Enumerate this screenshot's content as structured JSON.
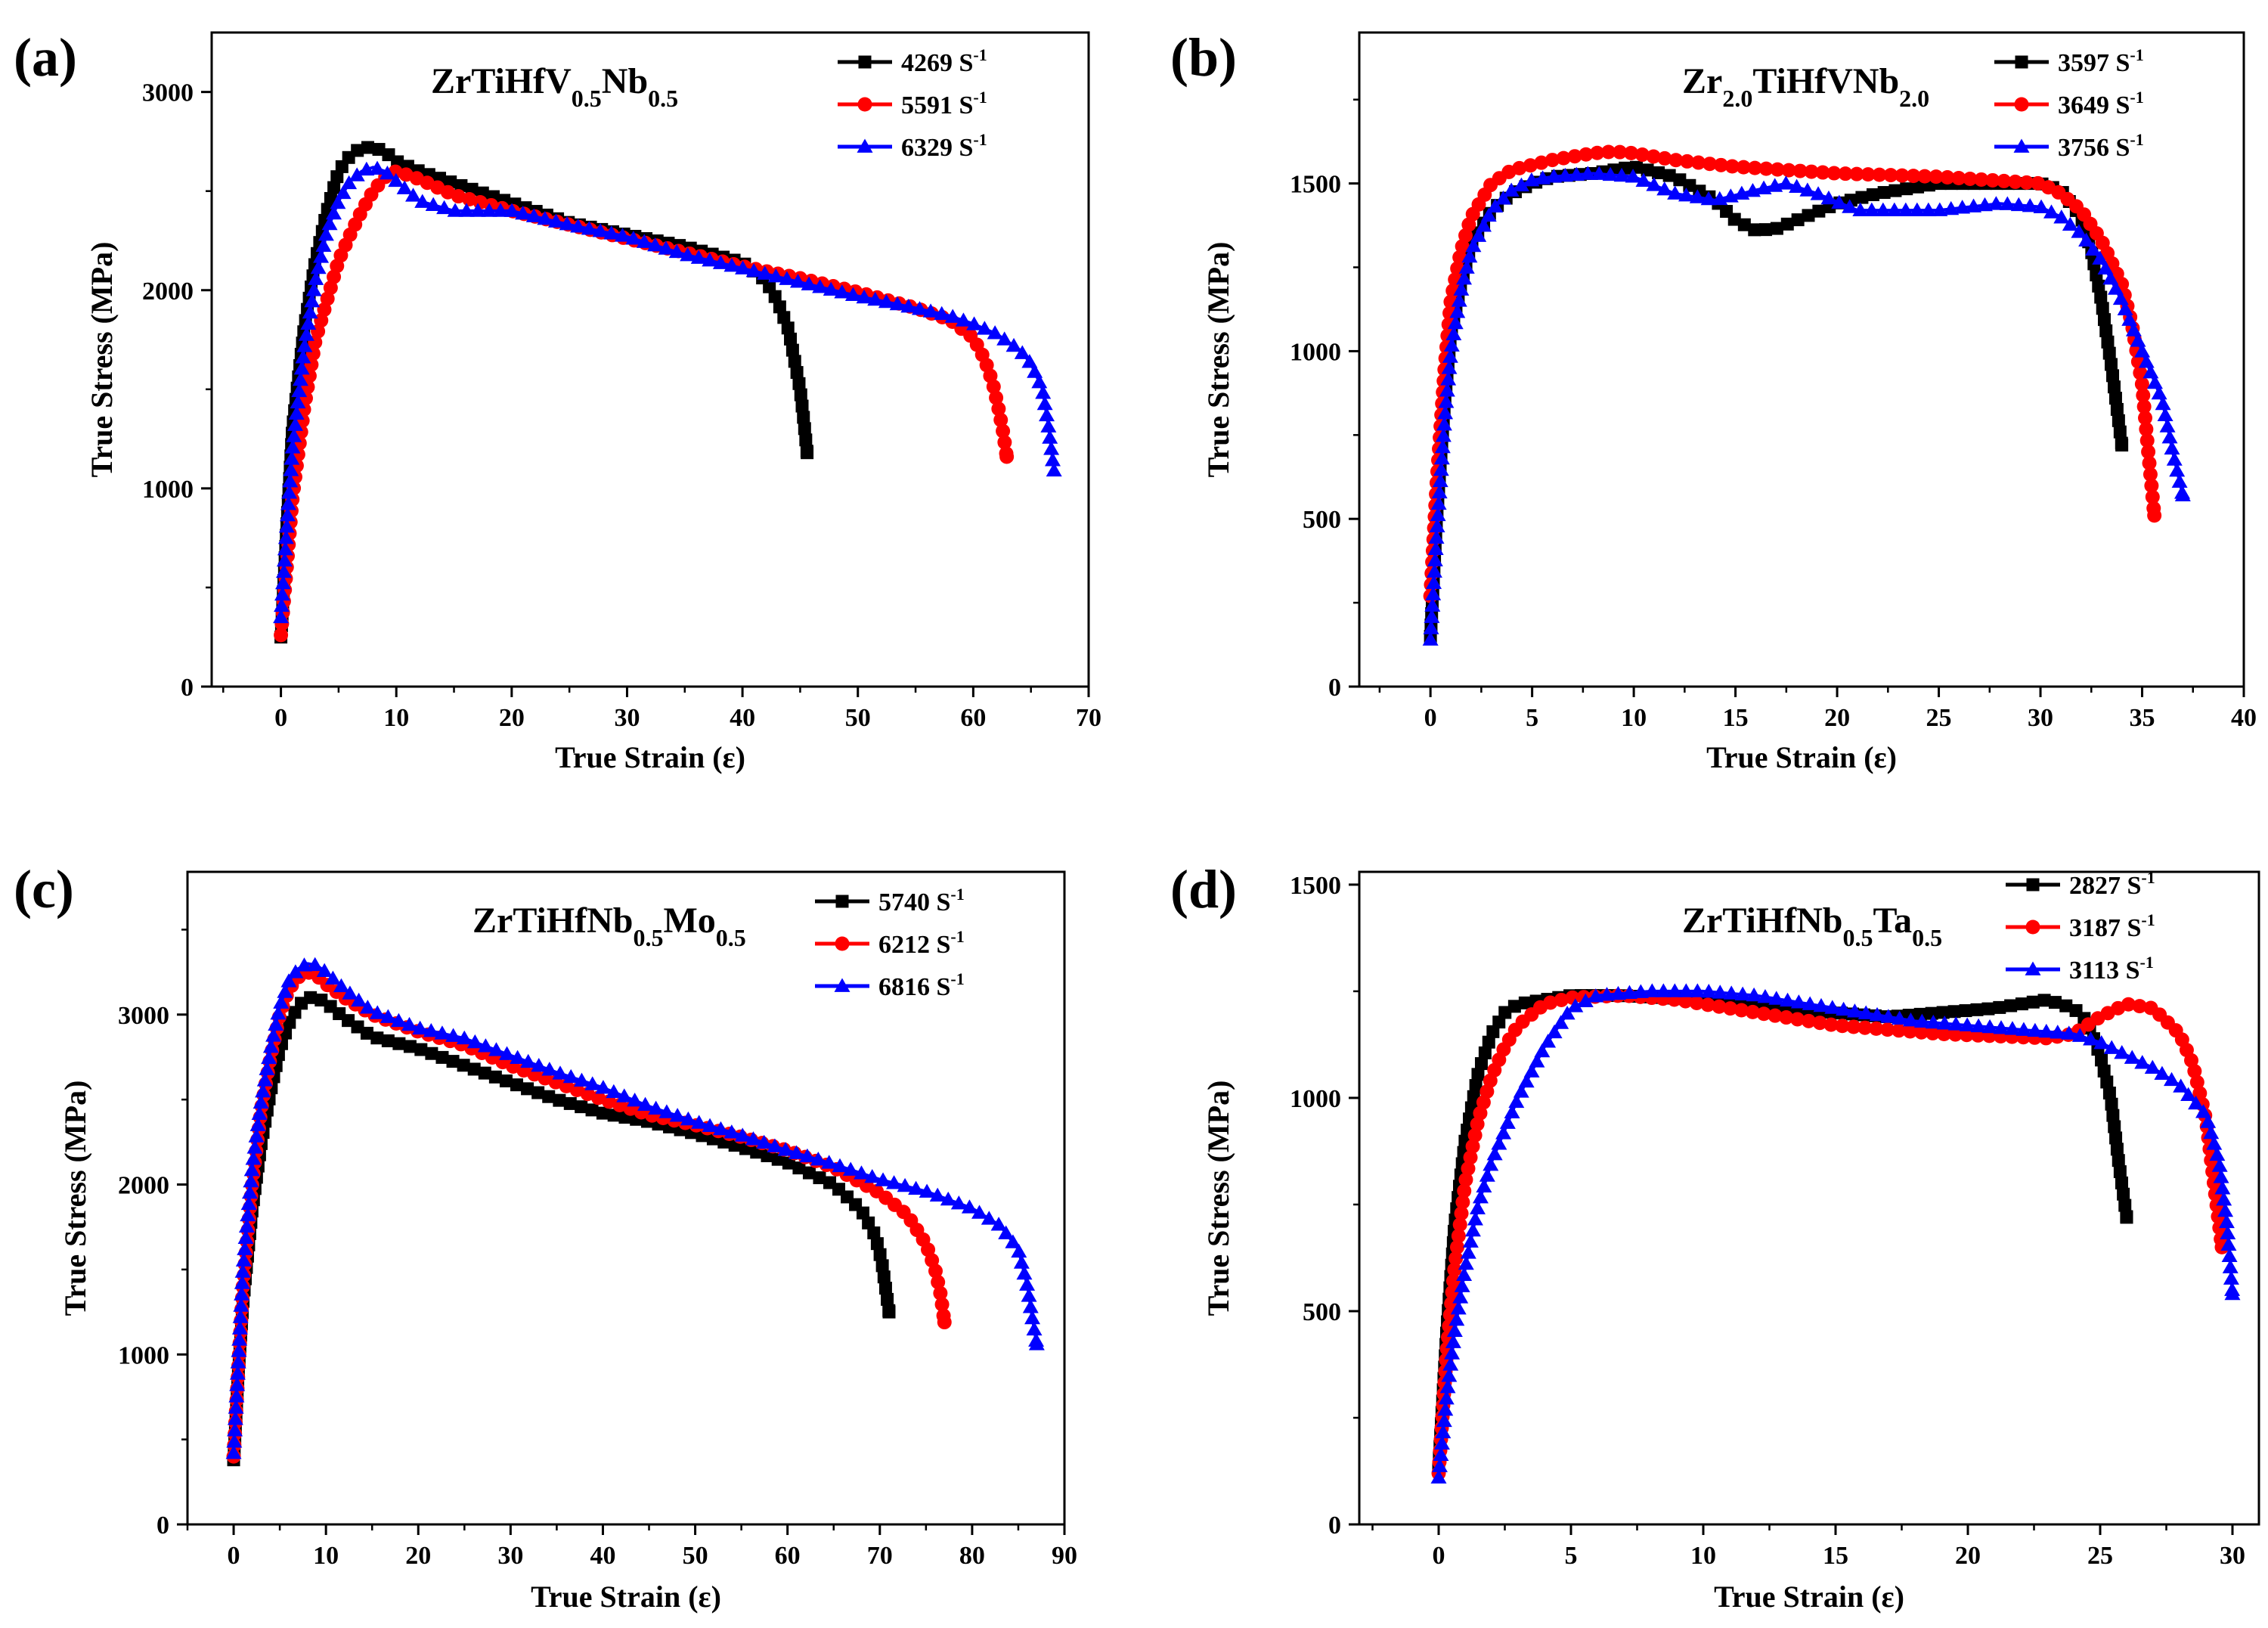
{
  "figure": {
    "colors": {
      "black": "#000000",
      "red": "#ff0000",
      "blue": "#0000ff"
    },
    "markers": {
      "black": "square",
      "red": "circle",
      "blue": "triangle"
    }
  },
  "chart_data": [
    {
      "panel_label": "(a)",
      "type": "line",
      "title": "ZrTiHfV0.5Nb0.5",
      "title_parts": [
        {
          "text": "ZrTiHfV",
          "sub": false
        },
        {
          "text": "0.5",
          "sub": true
        },
        {
          "text": "Nb",
          "sub": false
        },
        {
          "text": "0.5",
          "sub": true
        }
      ],
      "xlabel": "True Strain (ε)",
      "ylabel": "True Stress (MPa)",
      "xlim": [
        -6,
        70
      ],
      "ylim": [
        0,
        3300
      ],
      "xticks": [
        0,
        10,
        20,
        30,
        40,
        50,
        60,
        70
      ],
      "yticks": [
        0,
        1000,
        2000,
        3000
      ],
      "legend_position": "top-right",
      "series": [
        {
          "name": "4269 S-1",
          "label_base": "4269 S",
          "label_sup": "-1",
          "color": "#000000",
          "marker": "square",
          "x": [
            0,
            0.5,
            1,
            2,
            3,
            4,
            5,
            6,
            7,
            8,
            9,
            10,
            12,
            15,
            20,
            25,
            30,
            35,
            40,
            42,
            43,
            44,
            44.5,
            45,
            45.3,
            45.6
          ],
          "y": [
            250,
            800,
            1300,
            1800,
            2150,
            2400,
            2600,
            2680,
            2720,
            2720,
            2700,
            2650,
            2600,
            2540,
            2440,
            2340,
            2280,
            2220,
            2140,
            2050,
            1950,
            1800,
            1650,
            1500,
            1350,
            1180
          ]
        },
        {
          "name": "5591 S-1",
          "label_base": "5591 S",
          "label_sup": "-1",
          "color": "#ff0000",
          "marker": "circle",
          "x": [
            0,
            0.5,
            1,
            2,
            3,
            4,
            5,
            6,
            7,
            8,
            9,
            10,
            12,
            15,
            20,
            25,
            30,
            35,
            40,
            45,
            50,
            55,
            58,
            60,
            61,
            61.7,
            62.2,
            62.6,
            62.9
          ],
          "y": [
            260,
            600,
            950,
            1400,
            1750,
            1950,
            2150,
            2280,
            2400,
            2500,
            2570,
            2600,
            2560,
            2480,
            2400,
            2330,
            2260,
            2190,
            2120,
            2060,
            1990,
            1910,
            1850,
            1760,
            1650,
            1530,
            1400,
            1280,
            1160
          ]
        },
        {
          "name": "6329 S-1",
          "label_base": "6329 S",
          "label_sup": "-1",
          "color": "#0000ff",
          "marker": "triangle",
          "x": [
            0,
            0.5,
            1,
            2,
            3,
            4,
            5,
            6,
            7,
            8,
            9,
            10,
            12,
            15,
            20,
            25,
            30,
            35,
            40,
            45,
            50,
            55,
            58,
            60,
            62,
            64,
            65,
            66,
            66.5,
            67
          ],
          "y": [
            350,
            800,
            1200,
            1700,
            2050,
            2300,
            2450,
            2550,
            2600,
            2620,
            2600,
            2550,
            2450,
            2400,
            2400,
            2330,
            2270,
            2180,
            2110,
            2040,
            1970,
            1910,
            1870,
            1830,
            1780,
            1700,
            1630,
            1500,
            1320,
            1090
          ]
        }
      ]
    },
    {
      "panel_label": "(b)",
      "type": "line",
      "title": "Zr2.0TiHfVNb2.0",
      "title_parts": [
        {
          "text": "Zr",
          "sub": false
        },
        {
          "text": "2.0",
          "sub": true
        },
        {
          "text": "TiHfVNb",
          "sub": false
        },
        {
          "text": "2.0",
          "sub": true
        }
      ],
      "xlabel": "True Strain (ε)",
      "ylabel": "True Stress (MPa)",
      "xlim": [
        -3.5,
        40
      ],
      "ylim": [
        0,
        1950
      ],
      "xticks": [
        0,
        5,
        10,
        15,
        20,
        25,
        30,
        35,
        40
      ],
      "yticks": [
        0,
        500,
        1000,
        1500
      ],
      "legend_position": "top-right",
      "series": [
        {
          "name": "3597 S-1",
          "label_base": "3597 S",
          "label_sup": "-1",
          "color": "#000000",
          "marker": "square",
          "x": [
            0,
            0.3,
            0.7,
            1,
            1.5,
            2,
            3,
            4,
            5,
            6,
            8,
            10,
            12,
            14,
            15,
            16,
            17,
            18,
            20,
            22,
            25,
            28,
            30,
            31,
            32,
            32.5,
            33,
            33.5,
            34
          ],
          "y": [
            150,
            500,
            850,
            1050,
            1200,
            1320,
            1420,
            1470,
            1500,
            1520,
            1530,
            1550,
            1520,
            1450,
            1390,
            1360,
            1365,
            1390,
            1440,
            1470,
            1500,
            1500,
            1500,
            1480,
            1400,
            1300,
            1150,
            950,
            720
          ]
        },
        {
          "name": "3649 S-1",
          "label_base": "3649 S",
          "label_sup": "-1",
          "color": "#ff0000",
          "marker": "circle",
          "x": [
            0,
            0.3,
            0.7,
            1,
            1.5,
            2,
            3,
            4,
            5,
            6,
            7,
            8,
            9,
            10,
            12,
            15,
            20,
            25,
            30,
            31,
            32,
            33,
            34,
            34.5,
            35,
            35.3,
            35.6
          ],
          "y": [
            270,
            600,
            950,
            1150,
            1300,
            1400,
            1500,
            1540,
            1555,
            1570,
            1580,
            1590,
            1595,
            1590,
            1570,
            1550,
            1530,
            1520,
            1500,
            1470,
            1420,
            1330,
            1200,
            1080,
            900,
            700,
            510
          ]
        },
        {
          "name": "3756 S-1",
          "label_base": "3756 S",
          "label_sup": "-1",
          "color": "#0000ff",
          "marker": "triangle",
          "x": [
            0,
            0.3,
            0.7,
            1,
            1.5,
            2,
            3,
            4,
            5,
            6,
            8,
            10,
            12,
            14,
            16,
            17.5,
            19,
            21,
            25,
            28,
            30,
            31,
            32,
            33,
            34,
            35,
            36,
            36.5,
            37
          ],
          "y": [
            140,
            450,
            800,
            1000,
            1180,
            1300,
            1420,
            1480,
            1510,
            1520,
            1530,
            1520,
            1470,
            1450,
            1480,
            1500,
            1470,
            1420,
            1420,
            1440,
            1430,
            1400,
            1350,
            1270,
            1150,
            1000,
            850,
            700,
            570
          ]
        }
      ]
    },
    {
      "panel_label": "(c)",
      "type": "line",
      "title": "ZrTiHfNb0.5Mo0.5",
      "title_parts": [
        {
          "text": "ZrTiHfNb",
          "sub": false
        },
        {
          "text": "0.5",
          "sub": true
        },
        {
          "text": "Mo",
          "sub": false
        },
        {
          "text": "0.5",
          "sub": true
        }
      ],
      "xlabel": "True Strain (ε)",
      "ylabel": "True Stress (MPa)",
      "xlim": [
        -5,
        90
      ],
      "ylim": [
        0,
        3840
      ],
      "xticks": [
        0,
        10,
        20,
        30,
        40,
        50,
        60,
        70,
        80,
        90
      ],
      "yticks": [
        0,
        1000,
        2000,
        3000
      ],
      "legend_position": "top-right",
      "series": [
        {
          "name": "5740 S-1",
          "label_base": "5740 S",
          "label_sup": "-1",
          "color": "#000000",
          "marker": "square",
          "x": [
            0,
            0.5,
            1,
            2,
            3,
            4,
            5,
            6,
            7,
            8,
            9,
            10,
            12,
            15,
            20,
            25,
            30,
            35,
            40,
            45,
            50,
            55,
            60,
            65,
            68,
            69.5,
            70.2,
            70.6,
            71
          ],
          "y": [
            380,
            900,
            1300,
            1850,
            2250,
            2550,
            2800,
            2950,
            3050,
            3100,
            3100,
            3070,
            2980,
            2870,
            2800,
            2700,
            2600,
            2500,
            2420,
            2370,
            2300,
            2220,
            2130,
            2000,
            1850,
            1700,
            1550,
            1400,
            1250
          ]
        },
        {
          "name": "6212 S-1",
          "label_base": "6212 S",
          "label_sup": "-1",
          "color": "#ff0000",
          "marker": "circle",
          "x": [
            0,
            0.5,
            1,
            2,
            3,
            4,
            5,
            6,
            7,
            8,
            9,
            10,
            12,
            15,
            20,
            25,
            30,
            35,
            40,
            45,
            50,
            55,
            60,
            65,
            70,
            73,
            75,
            76,
            76.6,
            77
          ],
          "y": [
            400,
            900,
            1400,
            2000,
            2450,
            2750,
            3000,
            3150,
            3220,
            3250,
            3230,
            3180,
            3100,
            3000,
            2900,
            2820,
            2700,
            2600,
            2500,
            2410,
            2350,
            2280,
            2200,
            2100,
            1950,
            1820,
            1650,
            1500,
            1350,
            1190
          ]
        },
        {
          "name": "6816 S-1",
          "label_base": "6816 S",
          "label_sup": "-1",
          "color": "#0000ff",
          "marker": "triangle",
          "x": [
            0,
            0.5,
            1,
            2,
            3,
            4,
            5,
            6,
            7,
            8,
            9,
            10,
            12,
            15,
            20,
            25,
            30,
            35,
            40,
            45,
            50,
            55,
            60,
            65,
            70,
            75,
            80,
            83,
            85,
            86,
            86.5,
            87
          ],
          "y": [
            420,
            950,
            1500,
            2100,
            2500,
            2800,
            3050,
            3200,
            3270,
            3300,
            3290,
            3250,
            3150,
            3020,
            2920,
            2860,
            2760,
            2660,
            2570,
            2460,
            2370,
            2290,
            2200,
            2120,
            2030,
            1960,
            1860,
            1760,
            1620,
            1400,
            1220,
            1060
          ]
        }
      ]
    },
    {
      "panel_label": "(d)",
      "type": "line",
      "title": "ZrTiHfNb0.5Ta0.5",
      "title_parts": [
        {
          "text": "ZrTiHfNb",
          "sub": false
        },
        {
          "text": "0.5",
          "sub": true
        },
        {
          "text": "Ta",
          "sub": false
        },
        {
          "text": "0.5",
          "sub": true
        }
      ],
      "xlabel": "True Strain (ε)",
      "ylabel": "True Stress (MPa)",
      "xlim": [
        -3,
        31
      ],
      "ylim": [
        0,
        1530
      ],
      "xticks": [
        0,
        5,
        10,
        15,
        20,
        25,
        30
      ],
      "yticks": [
        0,
        500,
        1000,
        1500
      ],
      "legend_position": "top-right",
      "series": [
        {
          "name": "2827 S-1",
          "label_base": "2827 S",
          "label_sup": "-1",
          "color": "#000000",
          "marker": "square",
          "x": [
            0,
            0.3,
            0.6,
            1,
            1.5,
            2,
            2.5,
            3,
            4,
            5,
            7,
            10,
            13,
            15,
            17,
            19,
            21,
            22,
            23,
            24,
            24.5,
            25,
            25.4,
            25.7,
            26
          ],
          "y": [
            130,
            450,
            700,
            900,
            1060,
            1150,
            1200,
            1220,
            1230,
            1240,
            1240,
            1230,
            1210,
            1200,
            1190,
            1200,
            1210,
            1220,
            1230,
            1210,
            1180,
            1100,
            1000,
            850,
            720
          ]
        },
        {
          "name": "3187 S-1",
          "label_base": "3187 S",
          "label_sup": "-1",
          "color": "#ff0000",
          "marker": "circle",
          "x": [
            0,
            0.3,
            0.6,
            1,
            1.5,
            2,
            2.5,
            3,
            4,
            5,
            7,
            9,
            11,
            13,
            15,
            17,
            19,
            21,
            23,
            24,
            25,
            26,
            27,
            28,
            28.5,
            29,
            29.3,
            29.6
          ],
          "y": [
            120,
            400,
            600,
            800,
            950,
            1050,
            1120,
            1170,
            1220,
            1235,
            1240,
            1230,
            1210,
            1190,
            1170,
            1160,
            1150,
            1145,
            1140,
            1150,
            1190,
            1220,
            1210,
            1150,
            1080,
            950,
            800,
            650
          ]
        },
        {
          "name": "3113 S-1",
          "label_base": "3113 S",
          "label_sup": "-1",
          "color": "#0000ff",
          "marker": "triangle",
          "x": [
            0,
            0.3,
            0.6,
            1,
            1.5,
            2,
            3,
            4,
            5,
            6,
            8,
            10,
            12,
            14,
            16,
            18,
            20,
            22,
            24,
            25,
            26,
            27,
            28,
            29,
            29.5,
            29.8,
            30
          ],
          "y": [
            110,
            300,
            450,
            600,
            750,
            850,
            1000,
            1120,
            1210,
            1240,
            1250,
            1250,
            1240,
            1220,
            1200,
            1180,
            1170,
            1160,
            1150,
            1130,
            1100,
            1070,
            1030,
            960,
            850,
            700,
            540
          ]
        }
      ]
    }
  ]
}
